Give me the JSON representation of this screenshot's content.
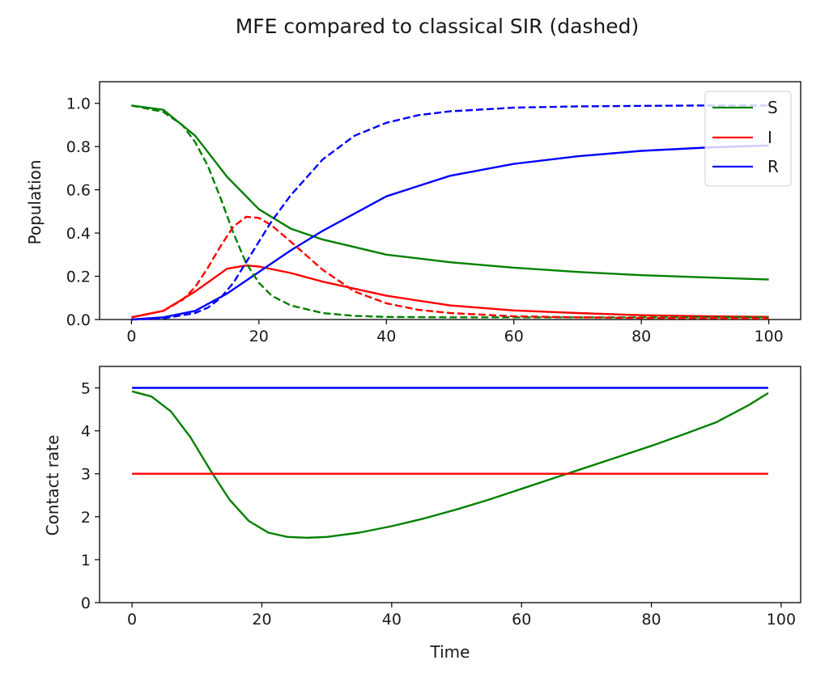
{
  "figure": {
    "title": "MFE compared to classical SIR (dashed)"
  },
  "colors": {
    "S": "#008000",
    "I": "#ff0000",
    "R": "#0000ff",
    "axes": "#000000"
  },
  "chart_data": [
    {
      "type": "line",
      "title": "",
      "xlabel": "",
      "ylabel": "Population",
      "xlim": [
        -5,
        105
      ],
      "ylim": [
        0,
        1.1
      ],
      "xticks": [
        0,
        20,
        40,
        60,
        80,
        100
      ],
      "yticks": [
        0.0,
        0.2,
        0.4,
        0.6,
        0.8,
        1.0
      ],
      "ytick_decimals": 1,
      "grid": false,
      "legend": {
        "placement": "upper right",
        "entries": [
          "S",
          "I",
          "R"
        ]
      },
      "series": [
        {
          "name": "S",
          "color": "#008000",
          "style": "solid",
          "x": [
            0,
            5,
            10,
            15,
            20,
            25,
            30,
            40,
            50,
            60,
            70,
            80,
            90,
            100
          ],
          "y": [
            0.99,
            0.97,
            0.85,
            0.66,
            0.51,
            0.42,
            0.37,
            0.3,
            0.265,
            0.24,
            0.22,
            0.205,
            0.195,
            0.185
          ]
        },
        {
          "name": "I",
          "color": "#ff0000",
          "style": "solid",
          "x": [
            0,
            5,
            10,
            15,
            18,
            20,
            25,
            30,
            40,
            50,
            60,
            70,
            80,
            90,
            100
          ],
          "y": [
            0.01,
            0.04,
            0.13,
            0.235,
            0.25,
            0.245,
            0.215,
            0.175,
            0.11,
            0.065,
            0.042,
            0.03,
            0.02,
            0.015,
            0.012
          ]
        },
        {
          "name": "R",
          "color": "#0000ff",
          "style": "solid",
          "x": [
            0,
            5,
            10,
            15,
            20,
            25,
            30,
            40,
            50,
            60,
            70,
            80,
            90,
            100
          ],
          "y": [
            0.0,
            0.01,
            0.04,
            0.12,
            0.22,
            0.32,
            0.41,
            0.57,
            0.665,
            0.72,
            0.755,
            0.78,
            0.795,
            0.805
          ]
        },
        {
          "name": "S",
          "color": "#008000",
          "style": "dashed",
          "x": [
            0,
            5,
            8,
            10,
            12,
            14,
            16,
            18,
            20,
            22,
            25,
            30,
            35,
            40,
            50,
            60,
            80,
            100
          ],
          "y": [
            0.99,
            0.96,
            0.9,
            0.82,
            0.71,
            0.56,
            0.4,
            0.26,
            0.17,
            0.11,
            0.065,
            0.03,
            0.017,
            0.012,
            0.01,
            0.01,
            0.01,
            0.01
          ]
        },
        {
          "name": "I",
          "color": "#ff0000",
          "style": "dashed",
          "x": [
            0,
            5,
            8,
            10,
            12,
            14,
            16,
            18,
            20,
            22,
            25,
            30,
            35,
            40,
            45,
            50,
            60,
            70,
            80,
            100
          ],
          "y": [
            0.01,
            0.04,
            0.09,
            0.15,
            0.24,
            0.34,
            0.43,
            0.475,
            0.47,
            0.435,
            0.36,
            0.23,
            0.13,
            0.075,
            0.045,
            0.03,
            0.015,
            0.01,
            0.007,
            0.005
          ]
        },
        {
          "name": "R",
          "color": "#0000ff",
          "style": "dashed",
          "x": [
            0,
            5,
            10,
            12,
            14,
            16,
            18,
            20,
            22,
            25,
            30,
            35,
            40,
            45,
            50,
            60,
            70,
            80,
            90,
            100
          ],
          "y": [
            0.0,
            0.005,
            0.03,
            0.055,
            0.1,
            0.17,
            0.265,
            0.36,
            0.455,
            0.575,
            0.74,
            0.85,
            0.91,
            0.945,
            0.963,
            0.98,
            0.986,
            0.988,
            0.99,
            0.99
          ]
        }
      ]
    },
    {
      "type": "line",
      "title": "",
      "xlabel": "Time",
      "ylabel": "Contact rate",
      "xlim": [
        -5,
        103
      ],
      "ylim": [
        0,
        5.5
      ],
      "xticks": [
        0,
        20,
        40,
        60,
        80,
        100
      ],
      "yticks": [
        0,
        1,
        2,
        3,
        4,
        5
      ],
      "ytick_decimals": 0,
      "grid": false,
      "series": [
        {
          "name": "S",
          "color": "#008000",
          "style": "solid",
          "x": [
            0,
            3,
            6,
            9,
            12,
            15,
            18,
            21,
            24,
            27,
            30,
            35,
            40,
            45,
            50,
            55,
            60,
            65,
            70,
            75,
            80,
            85,
            90,
            95,
            98
          ],
          "y": [
            4.92,
            4.8,
            4.45,
            3.85,
            3.1,
            2.4,
            1.9,
            1.63,
            1.53,
            1.51,
            1.53,
            1.63,
            1.78,
            1.96,
            2.17,
            2.4,
            2.65,
            2.9,
            3.15,
            3.4,
            3.65,
            3.92,
            4.2,
            4.6,
            4.88
          ]
        },
        {
          "name": "I",
          "color": "#ff0000",
          "style": "solid",
          "x": [
            0,
            98
          ],
          "y": [
            3,
            3
          ]
        },
        {
          "name": "R",
          "color": "#0000ff",
          "style": "solid",
          "x": [
            0,
            98
          ],
          "y": [
            5,
            5
          ]
        }
      ]
    }
  ]
}
